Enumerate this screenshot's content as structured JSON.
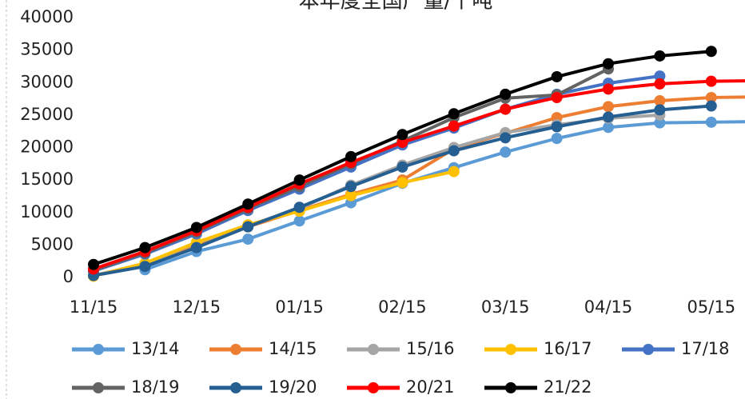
{
  "chart_data": {
    "type": "line",
    "title": "本年度全国产量/千吨",
    "categories": [
      "11/15",
      null,
      "12/15",
      null,
      "01/15",
      null,
      "02/15",
      null,
      "03/15",
      null,
      "04/15",
      null,
      "05/15",
      null
    ],
    "ylim": [
      0,
      40000
    ],
    "yticks": [
      0,
      5000,
      10000,
      15000,
      20000,
      25000,
      30000,
      35000,
      40000
    ],
    "grid": false,
    "legend": "bottom",
    "series": [
      {
        "name": "13/14",
        "color": "#5b9bd5",
        "values": [
          null,
          1200,
          4000,
          5900,
          8700,
          11500,
          14500,
          16900,
          19300,
          21400,
          23100,
          23800,
          23900,
          24000
        ]
      },
      {
        "name": "14/15",
        "color": "#ed7d31",
        "values": [
          300,
          2000,
          5000,
          7800,
          10300,
          12800,
          15000,
          19800,
          22200,
          24600,
          26300,
          27200,
          27700,
          27800
        ]
      },
      {
        "name": "15/16",
        "color": "#a5a5a5",
        "values": [
          300,
          2100,
          5300,
          8000,
          10600,
          14200,
          17300,
          20000,
          22300,
          23500,
          24500,
          25000,
          null,
          null
        ]
      },
      {
        "name": "16/17",
        "color": "#ffc000",
        "values": [
          200,
          2200,
          5400,
          8100,
          10200,
          12600,
          14600,
          16300,
          null,
          null,
          null,
          null,
          null,
          null
        ]
      },
      {
        "name": "17/18",
        "color": "#4472c4",
        "values": [
          1000,
          3600,
          6700,
          10300,
          13600,
          17000,
          20400,
          23000,
          25900,
          28200,
          29900,
          31000,
          null,
          null
        ]
      },
      {
        "name": "18/19",
        "color": "#636363",
        "values": [
          1100,
          3800,
          7000,
          10600,
          14000,
          17500,
          21000,
          24600,
          27600,
          28100,
          32100,
          null,
          null,
          null
        ]
      },
      {
        "name": "19/20",
        "color": "#255e91",
        "values": [
          300,
          1700,
          4600,
          7800,
          10800,
          14000,
          17000,
          19500,
          21500,
          23200,
          24700,
          25800,
          26400,
          null
        ]
      },
      {
        "name": "20/21",
        "color": "#ff0000",
        "values": [
          1300,
          4000,
          7200,
          10800,
          14400,
          17700,
          20800,
          23300,
          25900,
          27700,
          29000,
          29800,
          30200,
          30300
        ]
      },
      {
        "name": "21/22",
        "color": "#000000",
        "values": [
          2000,
          4600,
          7700,
          11300,
          15000,
          18600,
          22000,
          25200,
          28200,
          30900,
          32900,
          34100,
          34800,
          null
        ]
      }
    ]
  }
}
